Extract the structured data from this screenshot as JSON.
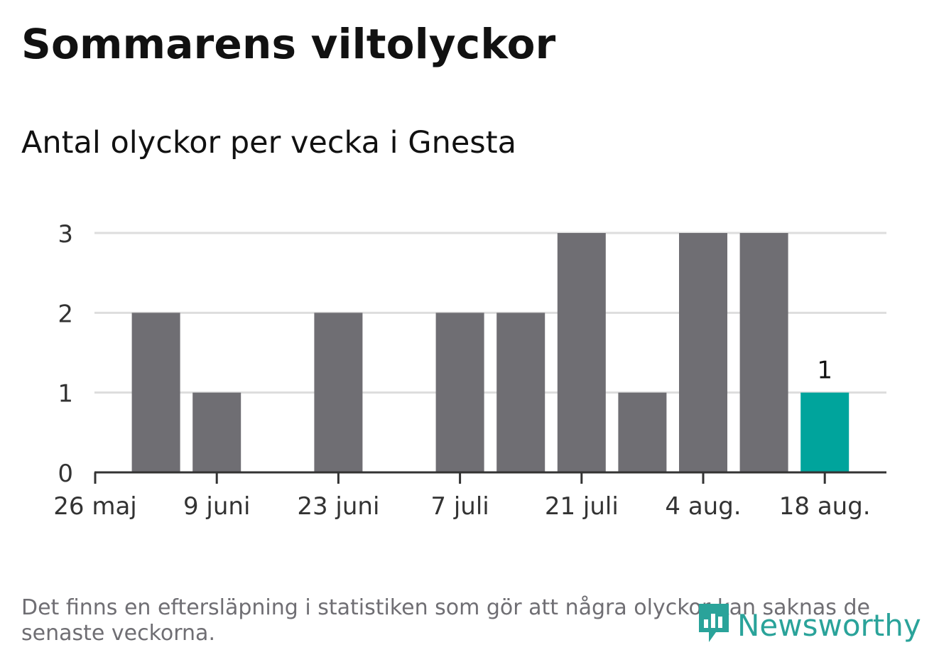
{
  "header": {
    "title": "Sommarens viltolyckor",
    "subtitle": "Antal olyckor per vecka i Gnesta"
  },
  "footer": {
    "note": "Det finns en eftersläpning i statistiken som gör att några olyckor kan saknas de senaste veckorna.",
    "brand": "Newsworthy",
    "brand_icon": "bar-chart-speech-icon"
  },
  "colors": {
    "bar": "#6f6e73",
    "highlight": "#00a49c",
    "grid": "#dddddd",
    "axis": "#333333",
    "brand": "#2aa39a"
  },
  "chart_data": {
    "type": "bar",
    "title": "Sommarens viltolyckor",
    "subtitle": "Antal olyckor per vecka i Gnesta",
    "x": [
      "2024-06-02",
      "2024-06-09",
      "2024-06-16",
      "2024-06-23",
      "2024-06-30",
      "2024-07-07",
      "2024-07-14",
      "2024-07-21",
      "2024-07-28",
      "2024-08-04",
      "2024-08-11",
      "2024-08-18"
    ],
    "values": [
      2,
      1,
      0,
      2,
      0,
      2,
      2,
      3,
      1,
      3,
      3,
      1
    ],
    "x_ticks": [
      "26 maj",
      "9 juni",
      "23 juni",
      "7 juli",
      "21 juli",
      "4 aug.",
      "18 aug."
    ],
    "y_ticks": [
      0,
      1,
      2,
      3
    ],
    "ylim": [
      0,
      3
    ],
    "highlight_last": true,
    "data_labels": [
      {
        "index": 11,
        "text": "1"
      }
    ],
    "grid": true
  }
}
